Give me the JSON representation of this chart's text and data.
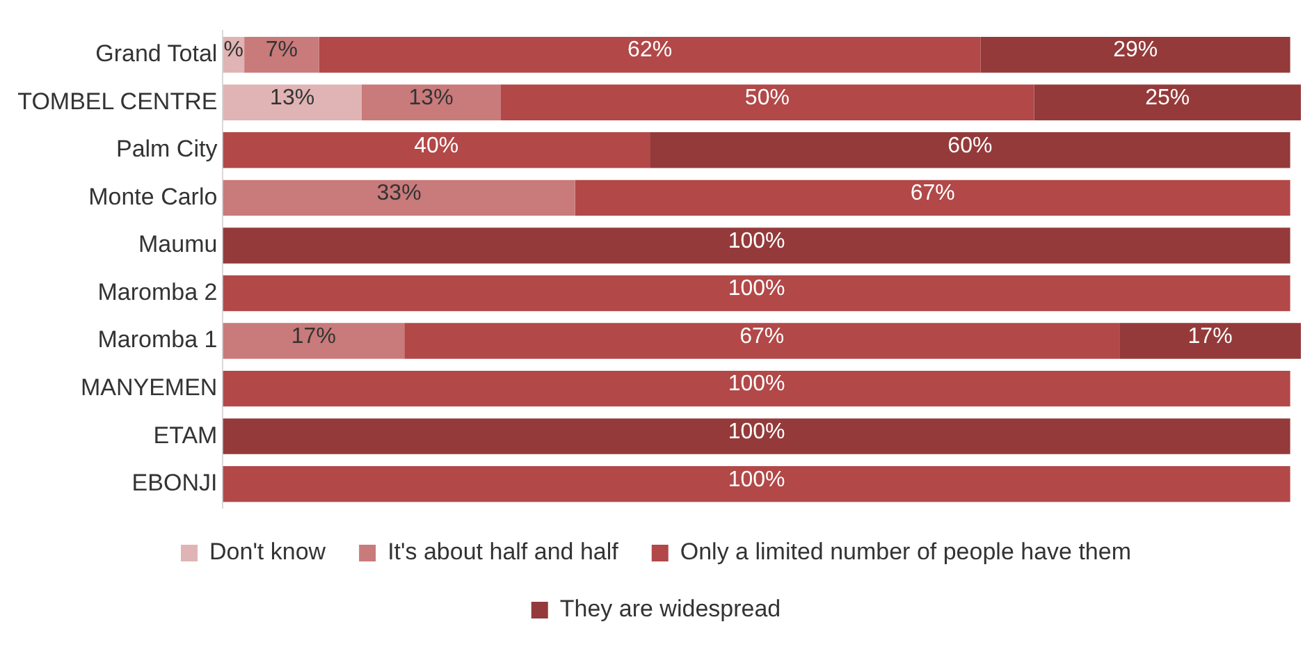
{
  "chart_data": {
    "type": "bar",
    "orientation": "horizontal",
    "stacked": true,
    "legend": "bottom",
    "grid": false,
    "tick_labels": "y",
    "xlim": [
      0,
      101
    ],
    "categories": [
      "Grand Total",
      "TOMBEL CENTRE",
      "Palm City",
      "Monte Carlo",
      "Maumu",
      "Maromba 2",
      "Maromba 1",
      "MANYEMEN",
      "ETAM",
      "EBONJI"
    ],
    "series": [
      {
        "name": "Don't know",
        "color": "#e0b4b4",
        "values": [
          2,
          13,
          0,
          0,
          0,
          0,
          0,
          0,
          0,
          0
        ],
        "value_labels": [
          "%",
          "13%",
          null,
          null,
          null,
          null,
          null,
          null,
          null,
          null
        ]
      },
      {
        "name": "It's about half and half",
        "color": "#c97a7a",
        "values": [
          7,
          13,
          0,
          33,
          0,
          0,
          17,
          0,
          0,
          0
        ],
        "value_labels": [
          "7%",
          "13%",
          null,
          "33%",
          null,
          null,
          "17%",
          null,
          null,
          null
        ]
      },
      {
        "name": "Only a limited number of people have them",
        "color": "#b24848",
        "values": [
          62,
          50,
          40,
          67,
          0,
          100,
          67,
          100,
          0,
          100
        ],
        "value_labels": [
          "62%",
          "50%",
          "40%",
          "67%",
          null,
          "100%",
          "67%",
          "100%",
          null,
          "100%"
        ]
      },
      {
        "name": "They are widespread",
        "color": "#943a3a",
        "values": [
          29,
          25,
          60,
          0,
          100,
          0,
          17,
          0,
          100,
          0
        ],
        "value_labels": [
          "29%",
          "25%",
          "60%",
          null,
          "100%",
          null,
          "17%",
          null,
          "100%",
          null
        ]
      }
    ]
  }
}
